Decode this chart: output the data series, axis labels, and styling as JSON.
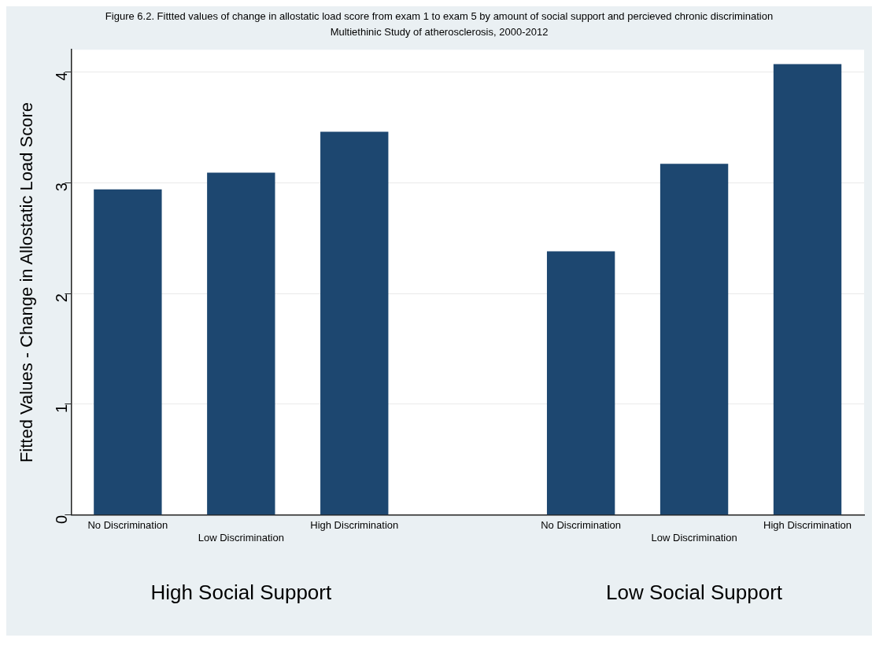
{
  "chart_data": {
    "type": "bar",
    "title": "Figure 6.2. Fittted values of change in allostatic load score from exam 1 to exam 5 by amount of social support and percieved chronic discrimination",
    "subtitle": "Multiethinic Study of atherosclerosis, 2000-2012",
    "ylabel": "Fitted Values - Change in Allostatic Load Score",
    "categories": [
      "No Discrimination",
      "Low Discrimination",
      "High Discrimination",
      null,
      "No Discrimination",
      "Low Discrimination",
      "High Discrimination"
    ],
    "values": [
      2.94,
      3.09,
      3.46,
      null,
      2.38,
      3.17,
      4.07
    ],
    "color": "#1d4770",
    "annotations": [
      "High Social Support",
      "Low Social Support"
    ],
    "ylim": [
      0,
      4.2
    ],
    "yticks": [
      0,
      1,
      2,
      3,
      4
    ],
    "grid": "y",
    "legend": false
  }
}
